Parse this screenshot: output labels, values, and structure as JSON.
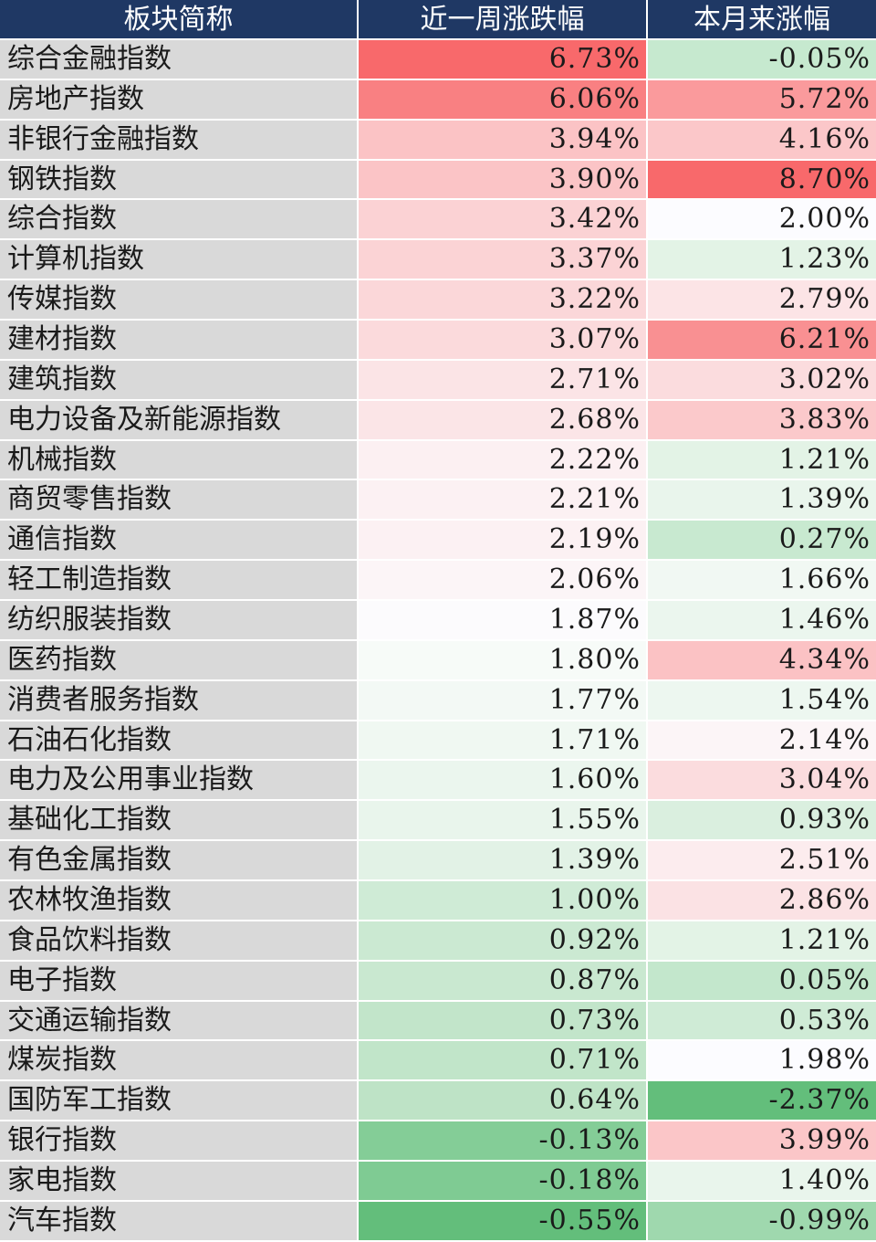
{
  "headers": [
    "板块简称",
    "近一周涨跌幅",
    "本月来涨幅"
  ],
  "rows": [
    {
      "name": "综合金融指数",
      "week": "6.73%",
      "month": "-0.05%",
      "week_bg": "#f8696b",
      "month_bg": "#c6e9cf"
    },
    {
      "name": "房地产指数",
      "week": "6.06%",
      "month": "5.72%",
      "week_bg": "#f98082",
      "month_bg": "#fa9a9c"
    },
    {
      "name": "非银行金融指数",
      "week": "3.94%",
      "month": "4.16%",
      "week_bg": "#fbc3c5",
      "month_bg": "#fbc7c9"
    },
    {
      "name": "钢铁指数",
      "week": "3.90%",
      "month": "8.70%",
      "week_bg": "#fbc4c6",
      "month_bg": "#f8696b"
    },
    {
      "name": "综合指数",
      "week": "3.42%",
      "month": "2.00%",
      "week_bg": "#fbd2d4",
      "month_bg": "#fcfcff"
    },
    {
      "name": "计算机指数",
      "week": "3.37%",
      "month": "1.23%",
      "week_bg": "#fbd3d5",
      "month_bg": "#e3f3e6"
    },
    {
      "name": "传媒指数",
      "week": "3.22%",
      "month": "2.79%",
      "week_bg": "#fbd7d9",
      "month_bg": "#fce4e6"
    },
    {
      "name": "建材指数",
      "week": "3.07%",
      "month": "6.21%",
      "week_bg": "#fbdadc",
      "month_bg": "#f99092"
    },
    {
      "name": "建筑指数",
      "week": "2.71%",
      "month": "3.02%",
      "week_bg": "#fbe4e6",
      "month_bg": "#fbdcde"
    },
    {
      "name": "电力设备及新能源指数",
      "week": "2.68%",
      "month": "3.83%",
      "week_bg": "#fbe5e7",
      "month_bg": "#fbc9cb"
    },
    {
      "name": "机械指数",
      "week": "2.22%",
      "month": "1.21%",
      "week_bg": "#fcf0f2",
      "month_bg": "#e3f3e6"
    },
    {
      "name": "商贸零售指数",
      "week": "2.21%",
      "month": "1.39%",
      "week_bg": "#fcf1f3",
      "month_bg": "#e9f5ec"
    },
    {
      "name": "通信指数",
      "week": "2.19%",
      "month": "0.27%",
      "week_bg": "#fcf1f3",
      "month_bg": "#c8e9d0"
    },
    {
      "name": "轻工制造指数",
      "week": "2.06%",
      "month": "1.66%",
      "week_bg": "#fcf5f7",
      "month_bg": "#f1f8f3"
    },
    {
      "name": "纺织服装指数",
      "week": "1.87%",
      "month": "1.46%",
      "week_bg": "#fcfbfd",
      "month_bg": "#ebf6ee"
    },
    {
      "name": "医药指数",
      "week": "1.80%",
      "month": "4.34%",
      "week_bg": "#f7fbf8",
      "month_bg": "#fbc2c4"
    },
    {
      "name": "消费者服务指数",
      "week": "1.77%",
      "month": "1.54%",
      "week_bg": "#f3f9f5",
      "month_bg": "#edf7f0"
    },
    {
      "name": "石油石化指数",
      "week": "1.71%",
      "month": "2.14%",
      "week_bg": "#f0f8f2",
      "month_bg": "#fcf5f7"
    },
    {
      "name": "电力及公用事业指数",
      "week": "1.60%",
      "month": "3.04%",
      "week_bg": "#ebf6ee",
      "month_bg": "#fbdcde"
    },
    {
      "name": "基础化工指数",
      "week": "1.55%",
      "month": "0.93%",
      "week_bg": "#e9f5ec",
      "month_bg": "#daefdf"
    },
    {
      "name": "有色金属指数",
      "week": "1.39%",
      "month": "2.51%",
      "week_bg": "#e2f2e6",
      "month_bg": "#fcecee"
    },
    {
      "name": "农林牧渔指数",
      "week": "1.00%",
      "month": "2.86%",
      "week_bg": "#cfebd6",
      "month_bg": "#fbe2e4"
    },
    {
      "name": "食品饮料指数",
      "week": "0.92%",
      "month": "1.21%",
      "week_bg": "#cbe9d2",
      "month_bg": "#e3f3e6"
    },
    {
      "name": "电子指数",
      "week": "0.87%",
      "month": "0.05%",
      "week_bg": "#c9e8d0",
      "month_bg": "#c3e7cc"
    },
    {
      "name": "交通运输指数",
      "week": "0.73%",
      "month": "0.53%",
      "week_bg": "#c2e5ca",
      "month_bg": "#cfebd6"
    },
    {
      "name": "煤炭指数",
      "week": "0.71%",
      "month": "1.98%",
      "week_bg": "#c1e5c9",
      "month_bg": "#fcfcff"
    },
    {
      "name": "国防军工指数",
      "week": "0.64%",
      "month": "-2.37%",
      "week_bg": "#bee3c6",
      "month_bg": "#63be7b"
    },
    {
      "name": "银行指数",
      "week": "-0.13%",
      "month": "3.99%",
      "week_bg": "#84cd97",
      "month_bg": "#fbc6c8"
    },
    {
      "name": "家电指数",
      "week": "-0.18%",
      "month": "1.40%",
      "week_bg": "#7fcb93",
      "month_bg": "#e9f5ec"
    },
    {
      "name": "汽车指数",
      "week": "-0.55%",
      "month": "-0.99%",
      "week_bg": "#63be7b",
      "month_bg": "#9fd8ae"
    }
  ]
}
